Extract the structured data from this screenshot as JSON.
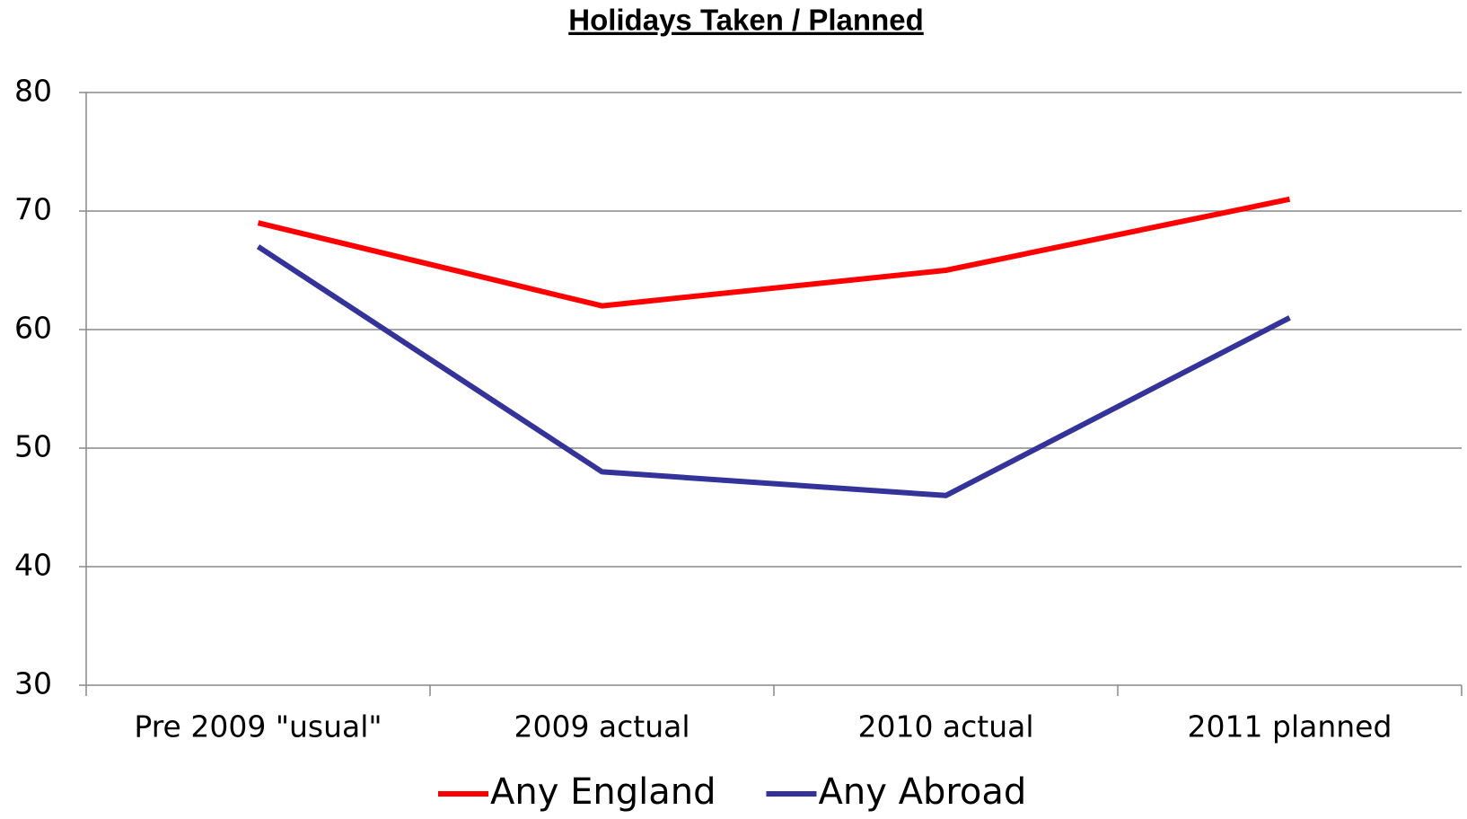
{
  "chart_data": {
    "type": "line",
    "title": "Holidays Taken / Planned",
    "categories": [
      "Pre 2009 \"usual\"",
      "2009 actual",
      "2010 actual",
      "2011 planned"
    ],
    "series": [
      {
        "name": "Any England",
        "color": "#ff0000",
        "values": [
          69,
          62,
          65,
          71
        ]
      },
      {
        "name": "Any Abroad",
        "color": "#333399",
        "values": [
          67,
          48,
          46,
          61
        ]
      }
    ],
    "ylim": [
      30,
      80
    ],
    "yticks": [
      30,
      40,
      50,
      60,
      70,
      80
    ],
    "grid": true,
    "legend": "bottom"
  }
}
